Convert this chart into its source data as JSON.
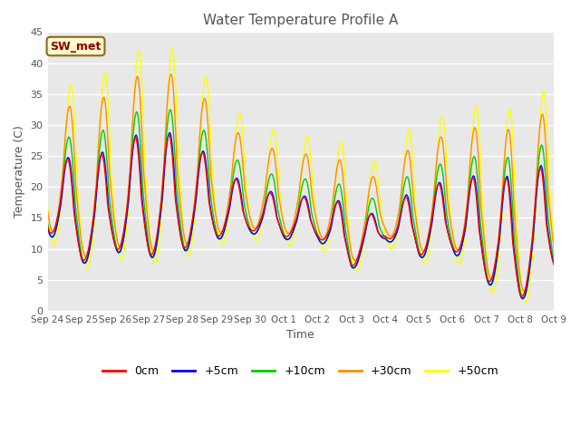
{
  "title": "Water Temperature Profile A",
  "xlabel": "Time",
  "ylabel": "Temperature (C)",
  "ylim": [
    0,
    45
  ],
  "yticks": [
    0,
    5,
    10,
    15,
    20,
    25,
    30,
    35,
    40,
    45
  ],
  "annotation_text": "SW_met",
  "annotation_color": "#8B0000",
  "annotation_bg": "#FFFACD",
  "annotation_edge": "#8B6914",
  "line_colors": {
    "0cm": "#FF0000",
    "+5cm": "#0000FF",
    "+10cm": "#00CC00",
    "+30cm": "#FF8C00",
    "+50cm": "#FFFF00"
  },
  "bg_color": "#E8E8E8",
  "grid_color": "#FFFFFF",
  "title_color": "#555555",
  "label_color": "#555555",
  "tick_color": "#555555",
  "xtick_labels": [
    "Sep 24",
    "Sep 25",
    "Sep 26",
    "Sep 27",
    "Sep 28",
    "Sep 29",
    "Sep 30",
    "Oct 1",
    "Oct 2",
    "Oct 3",
    "Oct 4",
    "Oct 5",
    "Oct 6",
    "Oct 7",
    "Oct 8",
    "Oct 9"
  ],
  "legend_labels": [
    "0cm",
    "+5cm",
    "+10cm",
    "+30cm",
    "+50cm"
  ]
}
